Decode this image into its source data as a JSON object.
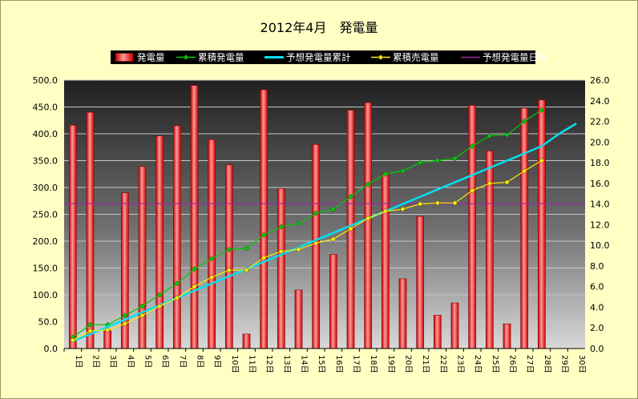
{
  "chart_data": {
    "type": "bar",
    "title": "2012年4月　発電量",
    "categories": [
      "1日",
      "2日",
      "3日",
      "4日",
      "5日",
      "6日",
      "7日",
      "8日",
      "9日",
      "10日",
      "11日",
      "12日",
      "13日",
      "14日",
      "15日",
      "16日",
      "17日",
      "18日",
      "19日",
      "20日",
      "21日",
      "22日",
      "23日",
      "24日",
      "25日",
      "26日",
      "27日",
      "28日",
      "29日",
      "30日"
    ],
    "left_axis": {
      "min": 0,
      "max": 500,
      "step": 50,
      "tick_labels": [
        "0.0",
        "50.0",
        "100.0",
        "150.0",
        "200.0",
        "250.0",
        "300.0",
        "350.0",
        "400.0",
        "450.0",
        "500.0"
      ]
    },
    "right_axis": {
      "min": 0,
      "max": 26,
      "step": 2,
      "tick_labels": [
        "0.0",
        "2.0",
        "4.0",
        "6.0",
        "8.0",
        "10.0",
        "12.0",
        "14.0",
        "16.0",
        "18.0",
        "20.0",
        "22.0",
        "24.0",
        "26.0"
      ]
    },
    "grid": true,
    "legend_position": "top",
    "series": [
      {
        "name": "発電量",
        "kind": "bar",
        "axis": "left",
        "color": "#ff2020",
        "values": [
          416,
          440,
          33,
          290,
          339,
          396,
          415,
          490,
          389,
          342,
          27,
          482,
          298,
          109,
          380,
          175,
          444,
          458,
          325,
          130,
          246,
          62,
          85,
          453,
          368,
          46,
          448,
          463,
          null,
          null
        ]
      },
      {
        "name": "累積発電量",
        "kind": "line",
        "axis": "right",
        "color": "#00cc00",
        "marker": "diamond",
        "values": [
          1.1,
          2.3,
          2.3,
          3.2,
          4.1,
          5.2,
          6.3,
          7.7,
          8.7,
          9.6,
          9.7,
          11.0,
          11.8,
          12.1,
          13.1,
          13.5,
          14.7,
          15.9,
          16.9,
          17.2,
          18.0,
          18.2,
          18.4,
          19.6,
          20.6,
          20.7,
          22.0,
          23.1,
          null,
          null
        ]
      },
      {
        "name": "予想発電量累計",
        "kind": "line",
        "axis": "right",
        "color": "#00e0f0",
        "values": [
          0.7,
          1.4,
          2.1,
          2.8,
          3.5,
          4.2,
          4.9,
          5.6,
          6.3,
          7.0,
          7.7,
          8.4,
          9.1,
          9.8,
          10.5,
          11.2,
          11.9,
          12.6,
          13.3,
          14.0,
          14.7,
          15.4,
          16.1,
          16.8,
          17.5,
          18.2,
          18.9,
          19.6,
          20.8,
          21.8
        ]
      },
      {
        "name": "累積売電量",
        "kind": "line",
        "axis": "right",
        "color": "#ffee00",
        "marker": "diamond",
        "values": [
          0.8,
          1.7,
          1.8,
          2.4,
          3.2,
          4.1,
          4.9,
          6.0,
          6.9,
          7.6,
          7.6,
          8.8,
          9.4,
          9.6,
          10.2,
          10.6,
          11.6,
          12.6,
          13.3,
          13.5,
          14.0,
          14.1,
          14.1,
          15.3,
          16.0,
          16.1,
          17.2,
          18.2,
          null,
          null
        ]
      },
      {
        "name": "予想発電量日割",
        "kind": "hline",
        "axis": "left",
        "color": "#9a2a9a",
        "value": 270
      }
    ]
  }
}
